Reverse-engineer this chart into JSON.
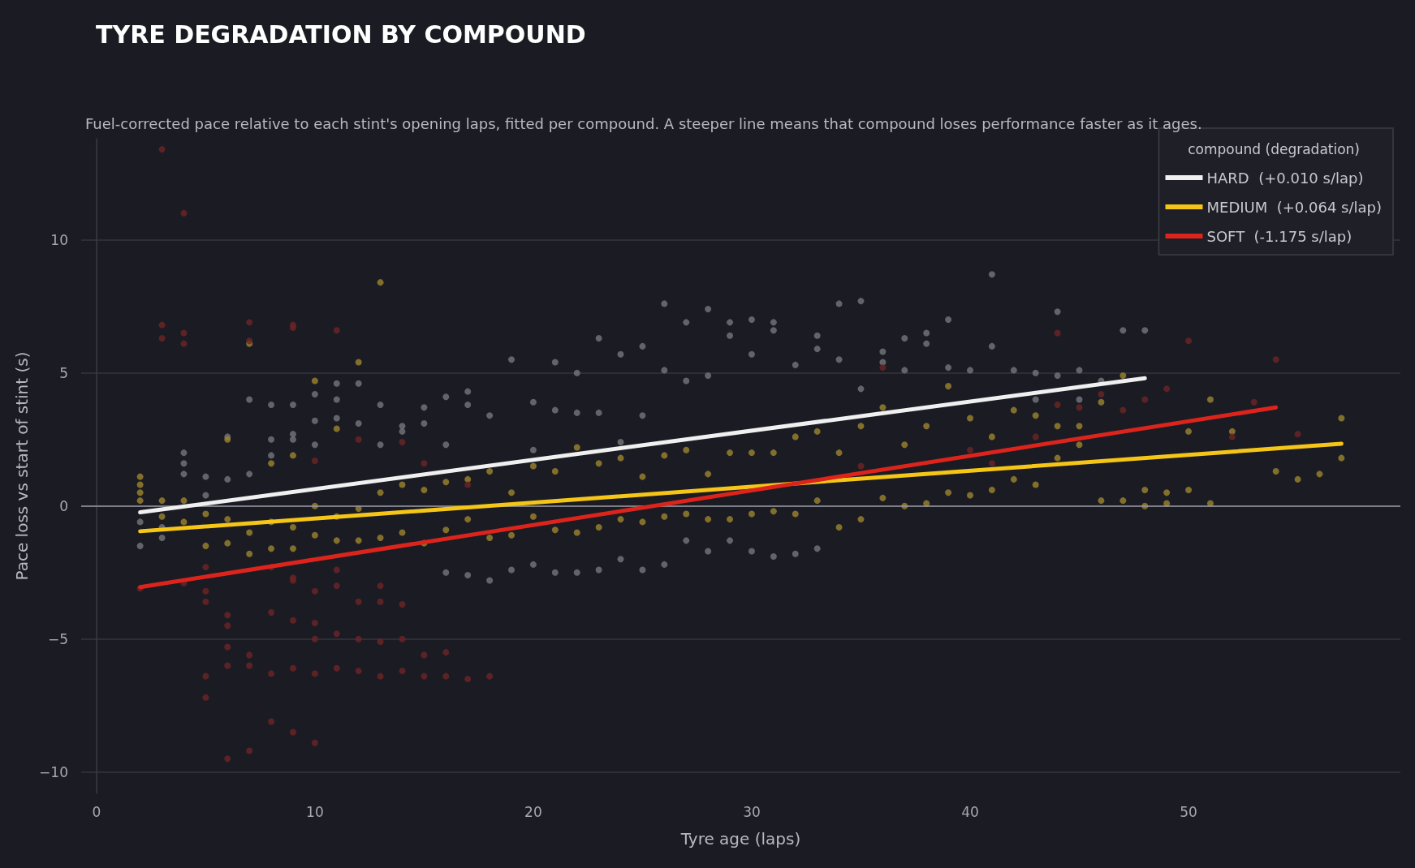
{
  "chart_data": {
    "type": "scatter",
    "title": "TYRE DEGRADATION BY COMPOUND",
    "subtitle": "Fuel-corrected pace relative to each stint's opening laps, fitted per compound. A steeper line means that compound loses performance faster as it ages.",
    "xlabel": "Tyre age (laps)",
    "ylabel": "Pace loss vs start of stint (s)",
    "legend_title": "compound (degradation)",
    "legend": "top right",
    "grid": "y",
    "marker": "circle",
    "xlim": [
      -0.7,
      59.7
    ],
    "xticks": [
      0,
      10,
      20,
      30,
      40,
      50
    ],
    "ylim": [
      -10.8,
      13.8
    ],
    "yticks": [
      {
        "value": -10,
        "label": "−10"
      },
      {
        "value": -5,
        "label": "−5"
      },
      0,
      5,
      10
    ],
    "ref_lines": [
      {
        "axis": "y",
        "value": 0,
        "color": "#9a9aa2"
      }
    ],
    "series": [
      {
        "color": "#76767c",
        "x": [
          2,
          2,
          3,
          3,
          4,
          4,
          4,
          5,
          5,
          6,
          6,
          7,
          7,
          8,
          8,
          8,
          9,
          9,
          9,
          10,
          10,
          10,
          11,
          11,
          11,
          12,
          12,
          13,
          13,
          14,
          14,
          15,
          15,
          16,
          16,
          16,
          17,
          17,
          17,
          18,
          18,
          19,
          19,
          20,
          20,
          20,
          21,
          21,
          21,
          22,
          22,
          22,
          23,
          23,
          23,
          24,
          24,
          24,
          25,
          25,
          25,
          26,
          26,
          26,
          27,
          27,
          27,
          28,
          28,
          28,
          29,
          29,
          29,
          30,
          30,
          30,
          31,
          31,
          31,
          32,
          32,
          33,
          33,
          33,
          34,
          34,
          35,
          35,
          36,
          36,
          37,
          37,
          38,
          38,
          39,
          39,
          40,
          41,
          41,
          42,
          43,
          43,
          44,
          44,
          45,
          45,
          46,
          47,
          48
        ],
        "values": [
          -1.5,
          -0.6,
          -1.2,
          -0.8,
          2,
          1.6,
          1.2,
          1.1,
          0.4,
          1,
          2.6,
          4,
          1.2,
          3.8,
          2.5,
          1.9,
          3.8,
          2.7,
          2.5,
          4.2,
          3.2,
          2.3,
          4.6,
          4,
          3.3,
          4.6,
          3.1,
          3.8,
          2.3,
          3,
          2.8,
          3.7,
          3.1,
          4.1,
          2.3,
          -2.5,
          4.3,
          3.8,
          -2.6,
          3.4,
          -2.8,
          5.5,
          -2.4,
          3.9,
          2.1,
          -2.2,
          5.4,
          3.6,
          -2.5,
          5,
          3.5,
          -2.5,
          6.3,
          3.5,
          -2.4,
          5.7,
          2.4,
          -2,
          6,
          3.4,
          -2.4,
          7.6,
          5.1,
          -2.2,
          6.9,
          4.7,
          -1.3,
          7.4,
          4.9,
          -1.7,
          6.9,
          6.4,
          -1.3,
          7,
          5.7,
          -1.7,
          6.9,
          6.6,
          -1.9,
          5.3,
          -1.8,
          6.4,
          5.9,
          -1.6,
          7.6,
          5.5,
          7.7,
          4.4,
          5.8,
          5.4,
          6.3,
          5.1,
          6.5,
          6.1,
          7,
          5.2,
          5.1,
          8.7,
          6,
          5.1,
          5,
          4,
          7.3,
          4.9,
          5.1,
          4,
          4.7,
          6.6,
          6.6
        ]
      },
      {
        "color": "#9c852e",
        "x": [
          2,
          2,
          2,
          2,
          3,
          3,
          4,
          4,
          5,
          5,
          6,
          6,
          6,
          7,
          7,
          7,
          8,
          8,
          8,
          9,
          9,
          9,
          10,
          10,
          10,
          11,
          11,
          11,
          12,
          12,
          12,
          13,
          13,
          13,
          14,
          14,
          15,
          15,
          16,
          16,
          17,
          17,
          18,
          18,
          19,
          19,
          20,
          20,
          21,
          21,
          22,
          22,
          23,
          23,
          24,
          24,
          25,
          25,
          26,
          26,
          27,
          27,
          28,
          28,
          29,
          29,
          30,
          30,
          31,
          31,
          32,
          32,
          33,
          33,
          34,
          34,
          35,
          35,
          36,
          36,
          37,
          37,
          38,
          38,
          39,
          39,
          40,
          40,
          41,
          41,
          42,
          42,
          43,
          43,
          44,
          44,
          45,
          45,
          46,
          46,
          47,
          47,
          48,
          48,
          49,
          49,
          50,
          50,
          51,
          51,
          52,
          53,
          54,
          55,
          56,
          57,
          57
        ],
        "values": [
          1.1,
          0.8,
          0.5,
          0.2,
          0.2,
          -0.4,
          0.2,
          -0.6,
          -0.3,
          -1.5,
          -0.5,
          -1.4,
          2.5,
          6.1,
          -1,
          -1.8,
          1.6,
          -0.6,
          -1.6,
          1.9,
          -0.8,
          -1.6,
          4.7,
          0,
          -1.1,
          2.9,
          -0.4,
          -1.3,
          5.4,
          -0.1,
          -1.3,
          8.4,
          0.5,
          -1.2,
          0.8,
          -1,
          0.6,
          -1.4,
          0.9,
          -0.9,
          1,
          -0.5,
          1.3,
          -1.2,
          0.5,
          -1.1,
          1.5,
          -0.4,
          1.3,
          -0.9,
          2.2,
          -1,
          1.6,
          -0.8,
          1.8,
          -0.5,
          1.1,
          -0.6,
          1.9,
          -0.4,
          2.1,
          -0.3,
          1.2,
          -0.5,
          2,
          -0.5,
          2,
          -0.3,
          2,
          -0.2,
          2.6,
          -0.3,
          2.8,
          0.2,
          2,
          -0.8,
          3,
          -0.5,
          3.7,
          0.3,
          2.3,
          0,
          3,
          0.1,
          4.5,
          0.5,
          3.3,
          0.4,
          2.6,
          0.6,
          3.6,
          1,
          3.4,
          0.8,
          3,
          1.8,
          3,
          2.3,
          3.9,
          0.2,
          4.9,
          0.2,
          0.6,
          0,
          0.5,
          0.1,
          0.6,
          2.8,
          4,
          0.1,
          2.8,
          null,
          1.3,
          1,
          1.2,
          1.8,
          3.3
        ]
      },
      {
        "color": "#6e2426",
        "x": [
          3,
          4,
          3,
          3,
          4,
          4,
          7,
          7,
          9,
          9,
          11,
          5,
          5,
          5,
          5,
          5,
          6,
          6,
          6,
          6,
          6,
          7,
          7,
          7,
          8,
          8,
          8,
          9,
          9,
          9,
          9,
          10,
          10,
          10,
          10,
          10,
          11,
          11,
          11,
          12,
          12,
          12,
          13,
          13,
          13,
          14,
          14,
          14,
          15,
          15,
          16,
          16,
          17,
          18,
          12,
          14,
          15,
          10,
          17,
          35,
          36,
          40,
          41,
          43,
          44,
          44,
          45,
          46,
          47,
          48,
          49,
          50,
          52,
          53,
          54,
          55,
          4,
          2,
          8,
          9,
          11,
          13
        ],
        "values": [
          13.4,
          11,
          6.8,
          6.3,
          6.5,
          6.1,
          6.9,
          6.2,
          6.8,
          6.7,
          6.6,
          -2.3,
          -3.2,
          -3.6,
          -6.4,
          -7.2,
          -4.1,
          -4.5,
          -5.3,
          -6,
          -9.5,
          -5.6,
          -6,
          -9.2,
          -6.3,
          -8.1,
          -4,
          -6.1,
          -8.5,
          -4.3,
          -2.8,
          -6.3,
          -8.9,
          -4.4,
          -3.2,
          -5,
          -6.1,
          -4.8,
          -3,
          -5,
          -6.2,
          -3.6,
          -6.4,
          -5.1,
          -3.6,
          -5,
          -3.7,
          -6.2,
          -5.6,
          -6.4,
          -5.5,
          -6.4,
          -6.5,
          -6.4,
          2.5,
          2.4,
          1.6,
          1.7,
          0.8,
          1.5,
          5.2,
          2.1,
          1.6,
          2.6,
          6.5,
          3.8,
          3.7,
          4.2,
          3.6,
          4,
          4.4,
          6.2,
          2.6,
          3.9,
          5.5,
          2.7,
          -2.9,
          -3.1,
          -2.3,
          -2.7,
          -2.4,
          -3
        ]
      },
      {
        "type": "line",
        "marker": "none",
        "name": "HARD  (+0.010 s/lap)",
        "color": "#f0f0f0",
        "x": [
          2,
          48
        ],
        "values": [
          -0.24,
          4.8
        ]
      },
      {
        "type": "line",
        "marker": "none",
        "name": "MEDIUM  (+0.064 s/lap)",
        "color": "#f5c518",
        "x": [
          2,
          57
        ],
        "values": [
          -0.95,
          2.34
        ]
      },
      {
        "type": "line",
        "marker": "none",
        "name": "SOFT  (-1.175 s/lap)",
        "color": "#dc241c",
        "x": [
          2,
          54
        ],
        "values": [
          -3.05,
          3.7
        ]
      }
    ]
  }
}
